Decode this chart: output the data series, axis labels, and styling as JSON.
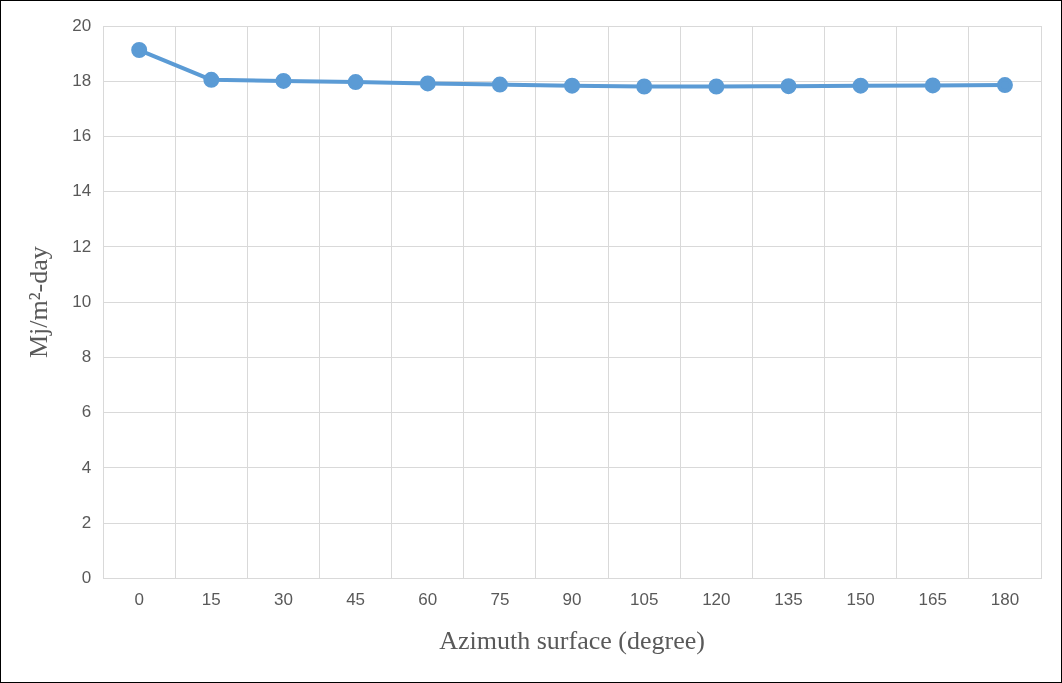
{
  "chart_data": {
    "type": "line",
    "xlabel": "Azimuth surface (degree)",
    "ylabel": "Mj/m²-day",
    "categories": [
      "0",
      "15",
      "30",
      "45",
      "60",
      "75",
      "90",
      "105",
      "120",
      "135",
      "150",
      "165",
      "180"
    ],
    "series": [
      {
        "color": "#5b9bd5",
        "values": [
          19.13,
          18.05,
          18.01,
          17.97,
          17.92,
          17.88,
          17.84,
          17.81,
          17.81,
          17.82,
          17.84,
          17.85,
          17.86
        ]
      }
    ],
    "ylim": [
      0,
      20
    ],
    "yticks": [
      0,
      2,
      4,
      6,
      8,
      10,
      12,
      14,
      16,
      18,
      20
    ],
    "grid": true,
    "legend": false,
    "marker": "circle",
    "line_style": "solid"
  }
}
